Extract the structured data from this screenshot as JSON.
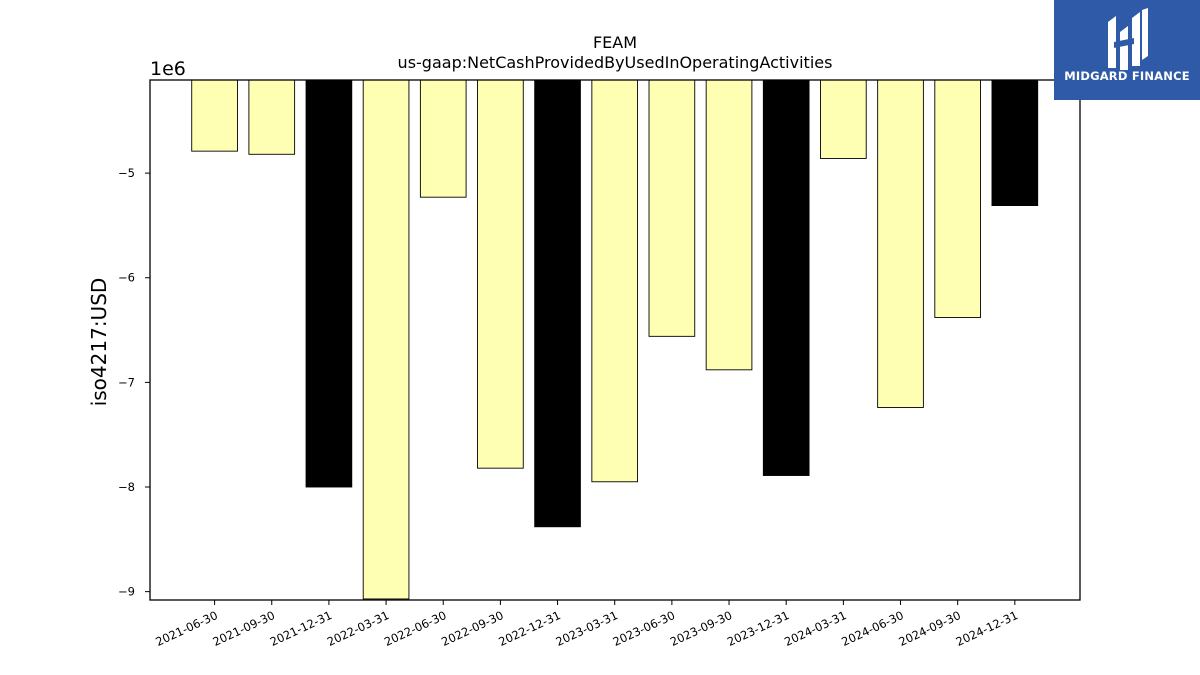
{
  "chart_data": {
    "type": "bar",
    "title": "FEAM",
    "subtitle": "us-gaap:NetCashProvidedByUsedInOperatingActivities",
    "ylabel": "iso4217:USD",
    "y_offset_label": "1e6",
    "categories": [
      "2021-06-30",
      "2021-09-30",
      "2021-12-31",
      "2022-03-31",
      "2022-06-30",
      "2022-09-30",
      "2022-12-31",
      "2023-03-31",
      "2023-06-30",
      "2023-09-30",
      "2023-12-31",
      "2024-03-31",
      "2024-06-30",
      "2024-09-30",
      "2024-12-31"
    ],
    "values": [
      -4790000,
      -4820000,
      -8000000,
      -9070000,
      -5230000,
      -7820000,
      -8380000,
      -7950000,
      -6560000,
      -6880000,
      -7890000,
      -4860000,
      -7240000,
      -6380000,
      -5310000
    ],
    "bar_colors": [
      "#ffffb3",
      "#ffffb3",
      "#000000",
      "#ffffb3",
      "#ffffb3",
      "#ffffb3",
      "#000000",
      "#ffffb3",
      "#ffffb3",
      "#ffffb3",
      "#000000",
      "#ffffb3",
      "#ffffb3",
      "#ffffb3",
      "#000000"
    ],
    "ylim": [
      -9080000,
      -4110000
    ],
    "yticks": [
      -5000000,
      -6000000,
      -7000000,
      -8000000,
      -9000000
    ],
    "ytick_labels": [
      "−5",
      "−6",
      "−7",
      "−8",
      "−9"
    ],
    "grid": false,
    "legend": "none"
  },
  "logo": {
    "text": "MIDGARD FINANCE",
    "icon": "midgard-logo-icon",
    "color": "#2f5aa8"
  }
}
